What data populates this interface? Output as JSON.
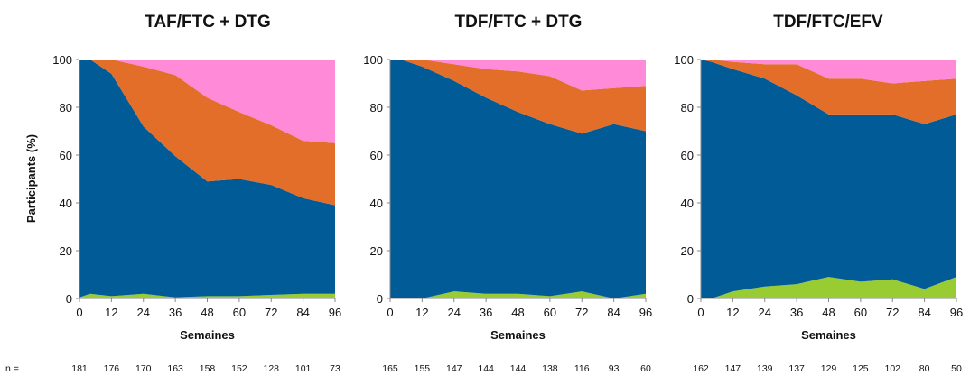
{
  "y_axis_label": "Participants (%)",
  "n_label": "n =",
  "colors": {
    "green": "#99cc33",
    "blue": "#005b96",
    "orange": "#e26e2a",
    "pink": "#ff8ad8",
    "axis": "#888888"
  },
  "chart_data": [
    {
      "type": "area",
      "title": "TAF/FTC + DTG",
      "xlabel": "Semaines",
      "ylabel": "Participants (%)",
      "x": [
        0,
        4,
        12,
        24,
        36,
        48,
        60,
        72,
        84,
        96
      ],
      "x_ticks": [
        0,
        12,
        24,
        36,
        48,
        60,
        72,
        84,
        96
      ],
      "y_ticks": [
        0,
        20,
        40,
        60,
        80,
        100
      ],
      "xlim": [
        0,
        96
      ],
      "ylim": [
        0,
        100
      ],
      "stacked": true,
      "series": [
        {
          "color": "green",
          "values": [
            0.5,
            2,
            1,
            2,
            0.5,
            1,
            1,
            1.5,
            2,
            2
          ]
        },
        {
          "color": "blue",
          "values": [
            100,
            98,
            93,
            70,
            59,
            48,
            49,
            46,
            40,
            37
          ]
        },
        {
          "color": "orange",
          "values": [
            0,
            0,
            7,
            25,
            34,
            35,
            28,
            25,
            24,
            26
          ]
        },
        {
          "color": "pink",
          "values": [
            0,
            0,
            0,
            3,
            7,
            16,
            22,
            28,
            34,
            35
          ]
        }
      ],
      "n_values": [
        "181",
        "176",
        "170",
        "163",
        "158",
        "152",
        "128",
        "101",
        "73"
      ]
    },
    {
      "type": "area",
      "title": "TDF/FTC + DTG",
      "xlabel": "Semaines",
      "ylabel": "",
      "x": [
        0,
        4,
        12,
        24,
        36,
        48,
        60,
        72,
        84,
        96
      ],
      "x_ticks": [
        0,
        12,
        24,
        36,
        48,
        60,
        72,
        84,
        96
      ],
      "y_ticks": [
        0,
        20,
        40,
        60,
        80,
        100
      ],
      "xlim": [
        0,
        96
      ],
      "ylim": [
        0,
        100
      ],
      "stacked": true,
      "series": [
        {
          "color": "green",
          "values": [
            0,
            0,
            0,
            3,
            2,
            2,
            1,
            3,
            0,
            2
          ]
        },
        {
          "color": "blue",
          "values": [
            100,
            100,
            97,
            88,
            82,
            76,
            72,
            66,
            73,
            68
          ]
        },
        {
          "color": "orange",
          "values": [
            0,
            0,
            3,
            7,
            12,
            17,
            20,
            18,
            15,
            19
          ]
        },
        {
          "color": "pink",
          "values": [
            0,
            0,
            0,
            2,
            4,
            5,
            7,
            13,
            12,
            11
          ]
        }
      ],
      "n_values": [
        "165",
        "155",
        "147",
        "144",
        "144",
        "138",
        "116",
        "93",
        "60"
      ]
    },
    {
      "type": "area",
      "title": "TDF/FTC/EFV",
      "xlabel": "Semaines",
      "ylabel": "",
      "x": [
        0,
        4,
        12,
        24,
        36,
        48,
        60,
        72,
        84,
        96
      ],
      "x_ticks": [
        0,
        12,
        24,
        36,
        48,
        60,
        72,
        84,
        96
      ],
      "y_ticks": [
        0,
        20,
        40,
        60,
        80,
        100
      ],
      "xlim": [
        0,
        96
      ],
      "ylim": [
        0,
        100
      ],
      "stacked": true,
      "series": [
        {
          "color": "green",
          "values": [
            0,
            0,
            3,
            5,
            6,
            9,
            7,
            8,
            4,
            9
          ]
        },
        {
          "color": "blue",
          "values": [
            100,
            99,
            93,
            87,
            79,
            68,
            70,
            69,
            69,
            68
          ]
        },
        {
          "color": "orange",
          "values": [
            0,
            1,
            3,
            6,
            13,
            15,
            15,
            13,
            18,
            15
          ]
        },
        {
          "color": "pink",
          "values": [
            0,
            0,
            1,
            2,
            2,
            8,
            8,
            10,
            9,
            8
          ]
        }
      ],
      "n_values": [
        "162",
        "147",
        "139",
        "137",
        "129",
        "125",
        "102",
        "80",
        "50"
      ]
    }
  ]
}
